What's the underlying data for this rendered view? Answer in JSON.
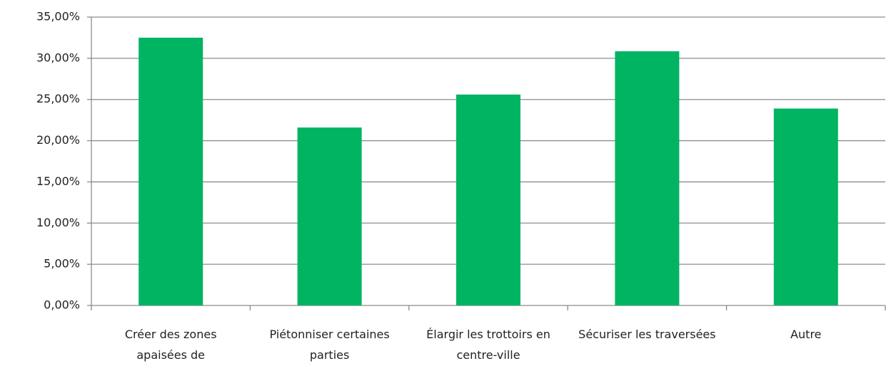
{
  "chart_data": {
    "type": "bar",
    "categories": [
      "Créer des zones apaisées de",
      "Piétonniser certaines parties",
      "Élargir les trottoirs en centre-ville",
      "Sécuriser les traversées",
      "Autre"
    ],
    "values": [
      32.5,
      21.6,
      25.6,
      30.85,
      23.9
    ],
    "color": "#00b462",
    "ylim": [
      0,
      35
    ],
    "yticks": [
      {
        "value": 0,
        "label": "0,00%"
      },
      {
        "value": 5,
        "label": "5,00%"
      },
      {
        "value": 10,
        "label": "10,00%"
      },
      {
        "value": 15,
        "label": "15,00%"
      },
      {
        "value": 20,
        "label": "20,00%"
      },
      {
        "value": 25,
        "label": "25,00%"
      },
      {
        "value": 30,
        "label": "30,00%"
      },
      {
        "value": 35,
        "label": "35,00%"
      }
    ],
    "grid": true
  }
}
